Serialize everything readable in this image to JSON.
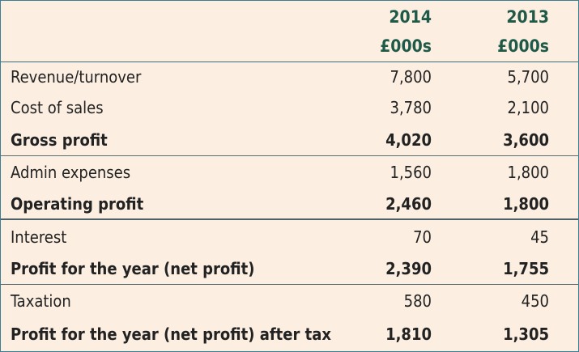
{
  "header": {
    "columns": [
      {
        "year": "2014",
        "unit": "£000s"
      },
      {
        "year": "2013",
        "unit": "£000s"
      }
    ]
  },
  "table": {
    "rows": [
      [
        "Revenue/turnover",
        "7,800",
        "5,700"
      ],
      [
        "Cost of sales",
        "3,780",
        "2,100"
      ],
      [
        "Gross profit",
        "4,020",
        "3,600"
      ],
      [
        "Admin expenses",
        "1,560",
        "1,800"
      ],
      [
        "Operating profit",
        "2,460",
        "1,800"
      ],
      [
        "Interest",
        "70",
        "45"
      ],
      [
        "Profit for the year (net profit)",
        "2,390",
        "1,755"
      ],
      [
        "Taxation",
        "580",
        "450"
      ],
      [
        "Profit for the year (net profit) after tax",
        "1,810",
        "1,305"
      ]
    ]
  }
}
